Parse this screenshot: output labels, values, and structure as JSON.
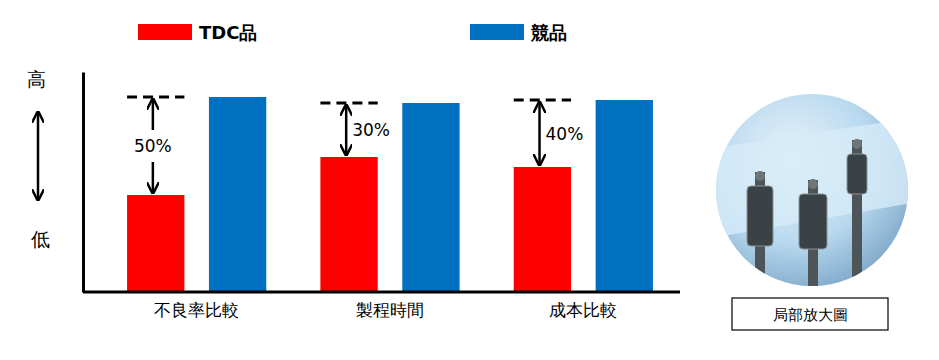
{
  "chart_data": {
    "type": "bar",
    "categories": [
      "不良率比較",
      "製程時間",
      "成本比較"
    ],
    "series": [
      {
        "name": "TDC品",
        "color": "#ff0000",
        "values": [
          48.5,
          67.5,
          62.5
        ]
      },
      {
        "name": "競品",
        "color": "#0070c0",
        "values": [
          97.5,
          94.5,
          96
        ]
      }
    ],
    "ylim": [
      0,
      110
    ],
    "yticks": [],
    "tick_labels": "x",
    "legend": "top",
    "grid": false,
    "ylabel": {
      "top": "高",
      "bottom": "低"
    },
    "annotations": [
      "50%",
      "30%",
      "40%"
    ],
    "image_caption": "局部放大圖"
  }
}
